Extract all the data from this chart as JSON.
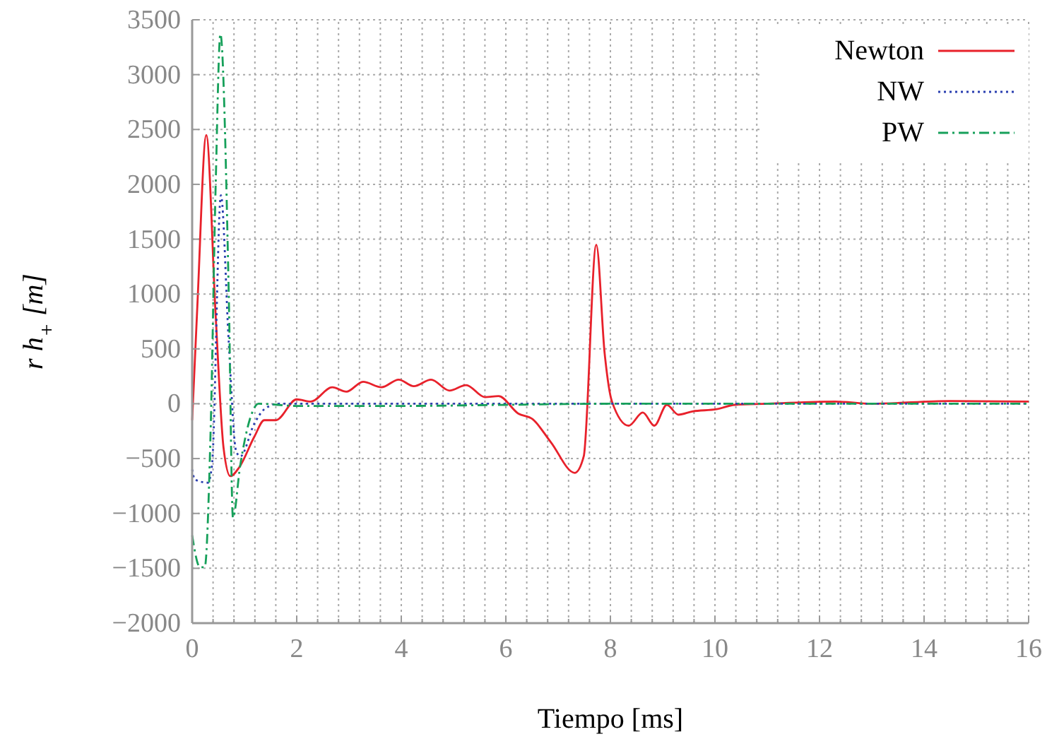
{
  "chart_data": {
    "type": "line",
    "xlabel": "Tiempo [ms]",
    "ylabel": "r h$_{+}$ [m]",
    "xlim": [
      0,
      16
    ],
    "ylim": [
      -2000,
      3500
    ],
    "yticks": [
      -2000,
      -1500,
      -1000,
      -500,
      0,
      500,
      1000,
      1500,
      2000,
      2500,
      3000,
      3500
    ],
    "xticks": [
      0,
      {
        "value": 0.4,
        "label": null
      },
      {
        "value": 0.8,
        "label": null
      },
      {
        "value": 1.2,
        "label": null
      },
      {
        "value": 1.6,
        "label": null
      },
      2,
      {
        "value": 2.4,
        "label": null
      },
      {
        "value": 2.8,
        "label": null
      },
      {
        "value": 3.2,
        "label": null
      },
      {
        "value": 3.6,
        "label": null
      },
      4,
      {
        "value": 4.4,
        "label": null
      },
      {
        "value": 4.8,
        "label": null
      },
      {
        "value": 5.2,
        "label": null
      },
      {
        "value": 5.6,
        "label": null
      },
      6,
      {
        "value": 6.4,
        "label": null
      },
      {
        "value": 6.8,
        "label": null
      },
      {
        "value": 7.2,
        "label": null
      },
      {
        "value": 7.6,
        "label": null
      },
      8,
      {
        "value": 8.4,
        "label": null
      },
      {
        "value": 8.8,
        "label": null
      },
      {
        "value": 9.2,
        "label": null
      },
      {
        "value": 9.6,
        "label": null
      },
      10,
      {
        "value": 10.4,
        "label": null
      },
      {
        "value": 10.8,
        "label": null
      },
      {
        "value": 11.2,
        "label": null
      },
      {
        "value": 11.6,
        "label": null
      },
      12,
      {
        "value": 12.4,
        "label": null
      },
      {
        "value": 12.8,
        "label": null
      },
      {
        "value": 13.2,
        "label": null
      },
      {
        "value": 13.6,
        "label": null
      },
      14,
      {
        "value": 14.4,
        "label": null
      },
      {
        "value": 14.8,
        "label": null
      },
      {
        "value": 15.2,
        "label": null
      },
      {
        "value": 15.6,
        "label": null
      },
      16
    ],
    "grid": true,
    "legend": "top right",
    "series": [
      {
        "name": "Newton",
        "color": "#e8212b",
        "line_style": "solid",
        "x": [
          0,
          0.1,
          0.27,
          0.45,
          0.6,
          0.73,
          0.9,
          1.19,
          1.38,
          1.6,
          2.0,
          2.27,
          2.68,
          2.95,
          3.27,
          3.62,
          3.95,
          4.24,
          4.57,
          4.92,
          5.24,
          5.6,
          5.86,
          6.24,
          6.51,
          6.86,
          7.32,
          7.49,
          7.73,
          7.89,
          8.03,
          8.35,
          8.62,
          8.84,
          9.08,
          9.3,
          9.57,
          10.03,
          10.38,
          11,
          12.3,
          13,
          14.5,
          16
        ],
        "values": [
          -150,
          900,
          2450,
          800,
          -400,
          -660,
          -580,
          -300,
          -150,
          -150,
          40,
          20,
          150,
          110,
          200,
          150,
          220,
          160,
          220,
          120,
          170,
          60,
          70,
          -90,
          -140,
          -350,
          -630,
          -480,
          1450,
          460,
          20,
          -200,
          -80,
          -200,
          -10,
          -100,
          -70,
          -50,
          -10,
          0,
          20,
          0,
          25,
          20
        ]
      },
      {
        "name": "NW",
        "color": "#2b3fb0",
        "line_style": "dotted",
        "x": [
          0,
          0.05,
          0.3,
          0.38,
          0.55,
          0.7,
          0.84,
          0.92,
          1.19,
          1.38,
          1.65,
          3,
          6,
          8,
          10,
          12,
          14,
          16
        ],
        "values": [
          -600,
          -690,
          -720,
          -560,
          1900,
          560,
          -430,
          -480,
          -180,
          -50,
          0,
          0,
          0,
          0,
          0,
          0,
          0,
          0
        ]
      },
      {
        "name": "PW",
        "color": "#16a05a",
        "line_style": "dashed",
        "x": [
          0,
          0.15,
          0.24,
          0.35,
          0.45,
          0.54,
          0.7,
          0.78,
          0.92,
          1.14,
          1.27,
          2,
          4,
          6,
          8,
          10,
          12,
          14,
          16
        ],
        "values": [
          -1200,
          -1490,
          -1490,
          -300,
          2000,
          3370,
          1000,
          -1040,
          -560,
          -90,
          0,
          -20,
          -20,
          -10,
          0,
          0,
          0,
          0,
          0
        ]
      }
    ]
  }
}
